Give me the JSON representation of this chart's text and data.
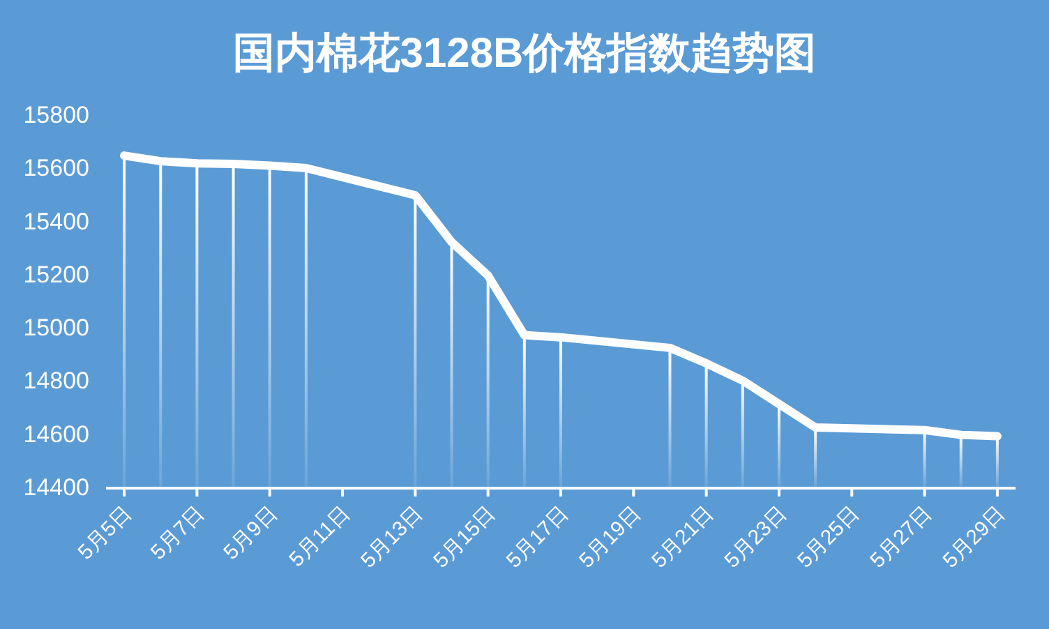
{
  "chart_data": {
    "type": "line",
    "title": "国内棉花3128B价格指数趋势图",
    "x": [
      "--05-05",
      "--05-06",
      "--05-07",
      "--05-08",
      "--05-09",
      "--05-10",
      "--05-13",
      "--05-14",
      "--05-15",
      "--05-16",
      "--05-17",
      "--05-20",
      "--05-21",
      "--05-22",
      "--05-23",
      "--05-24",
      "--05-27",
      "--05-28",
      "--05-29"
    ],
    "series": [
      {
        "color": "#ffffff",
        "values": [
          15645,
          15624,
          15616,
          15614,
          15607,
          15598,
          15496,
          15320,
          15194,
          14970,
          14962,
          14922,
          14864,
          14799,
          14711,
          14623,
          14613,
          14595,
          14590
        ]
      },
      {
        "type": "bar",
        "color": "#ffffff",
        "values": [
          15645,
          15624,
          15616,
          15614,
          15607,
          15598,
          15496,
          15320,
          15194,
          14970,
          14962,
          14922,
          14864,
          14799,
          14711,
          14623,
          14613,
          14595,
          14590
        ]
      }
    ],
    "xlim": [
      "--05-04T12:00",
      "--05-29T12:00"
    ],
    "xticks": [
      {
        "value": "--05-05",
        "label": "5月5日"
      },
      {
        "value": "--05-07",
        "label": "5月7日"
      },
      {
        "value": "--05-09",
        "label": "5月9日"
      },
      {
        "value": "--05-11",
        "label": "5月11日"
      },
      {
        "value": "--05-13",
        "label": "5月13日"
      },
      {
        "value": "--05-15",
        "label": "5月15日"
      },
      {
        "value": "--05-17",
        "label": "5月17日"
      },
      {
        "value": "--05-19",
        "label": "5月19日"
      },
      {
        "value": "--05-21",
        "label": "5月21日"
      },
      {
        "value": "--05-23",
        "label": "5月23日"
      },
      {
        "value": "--05-25",
        "label": "5月25日"
      },
      {
        "value": "--05-27",
        "label": "5月27日"
      },
      {
        "value": "--05-29",
        "label": "5月29日"
      }
    ],
    "ylim": [
      14400,
      15800
    ],
    "yticks": [
      14400,
      14600,
      14800,
      15000,
      15200,
      15400,
      15600,
      15800
    ],
    "grid": false,
    "marker": "none",
    "line_style": "solid"
  }
}
